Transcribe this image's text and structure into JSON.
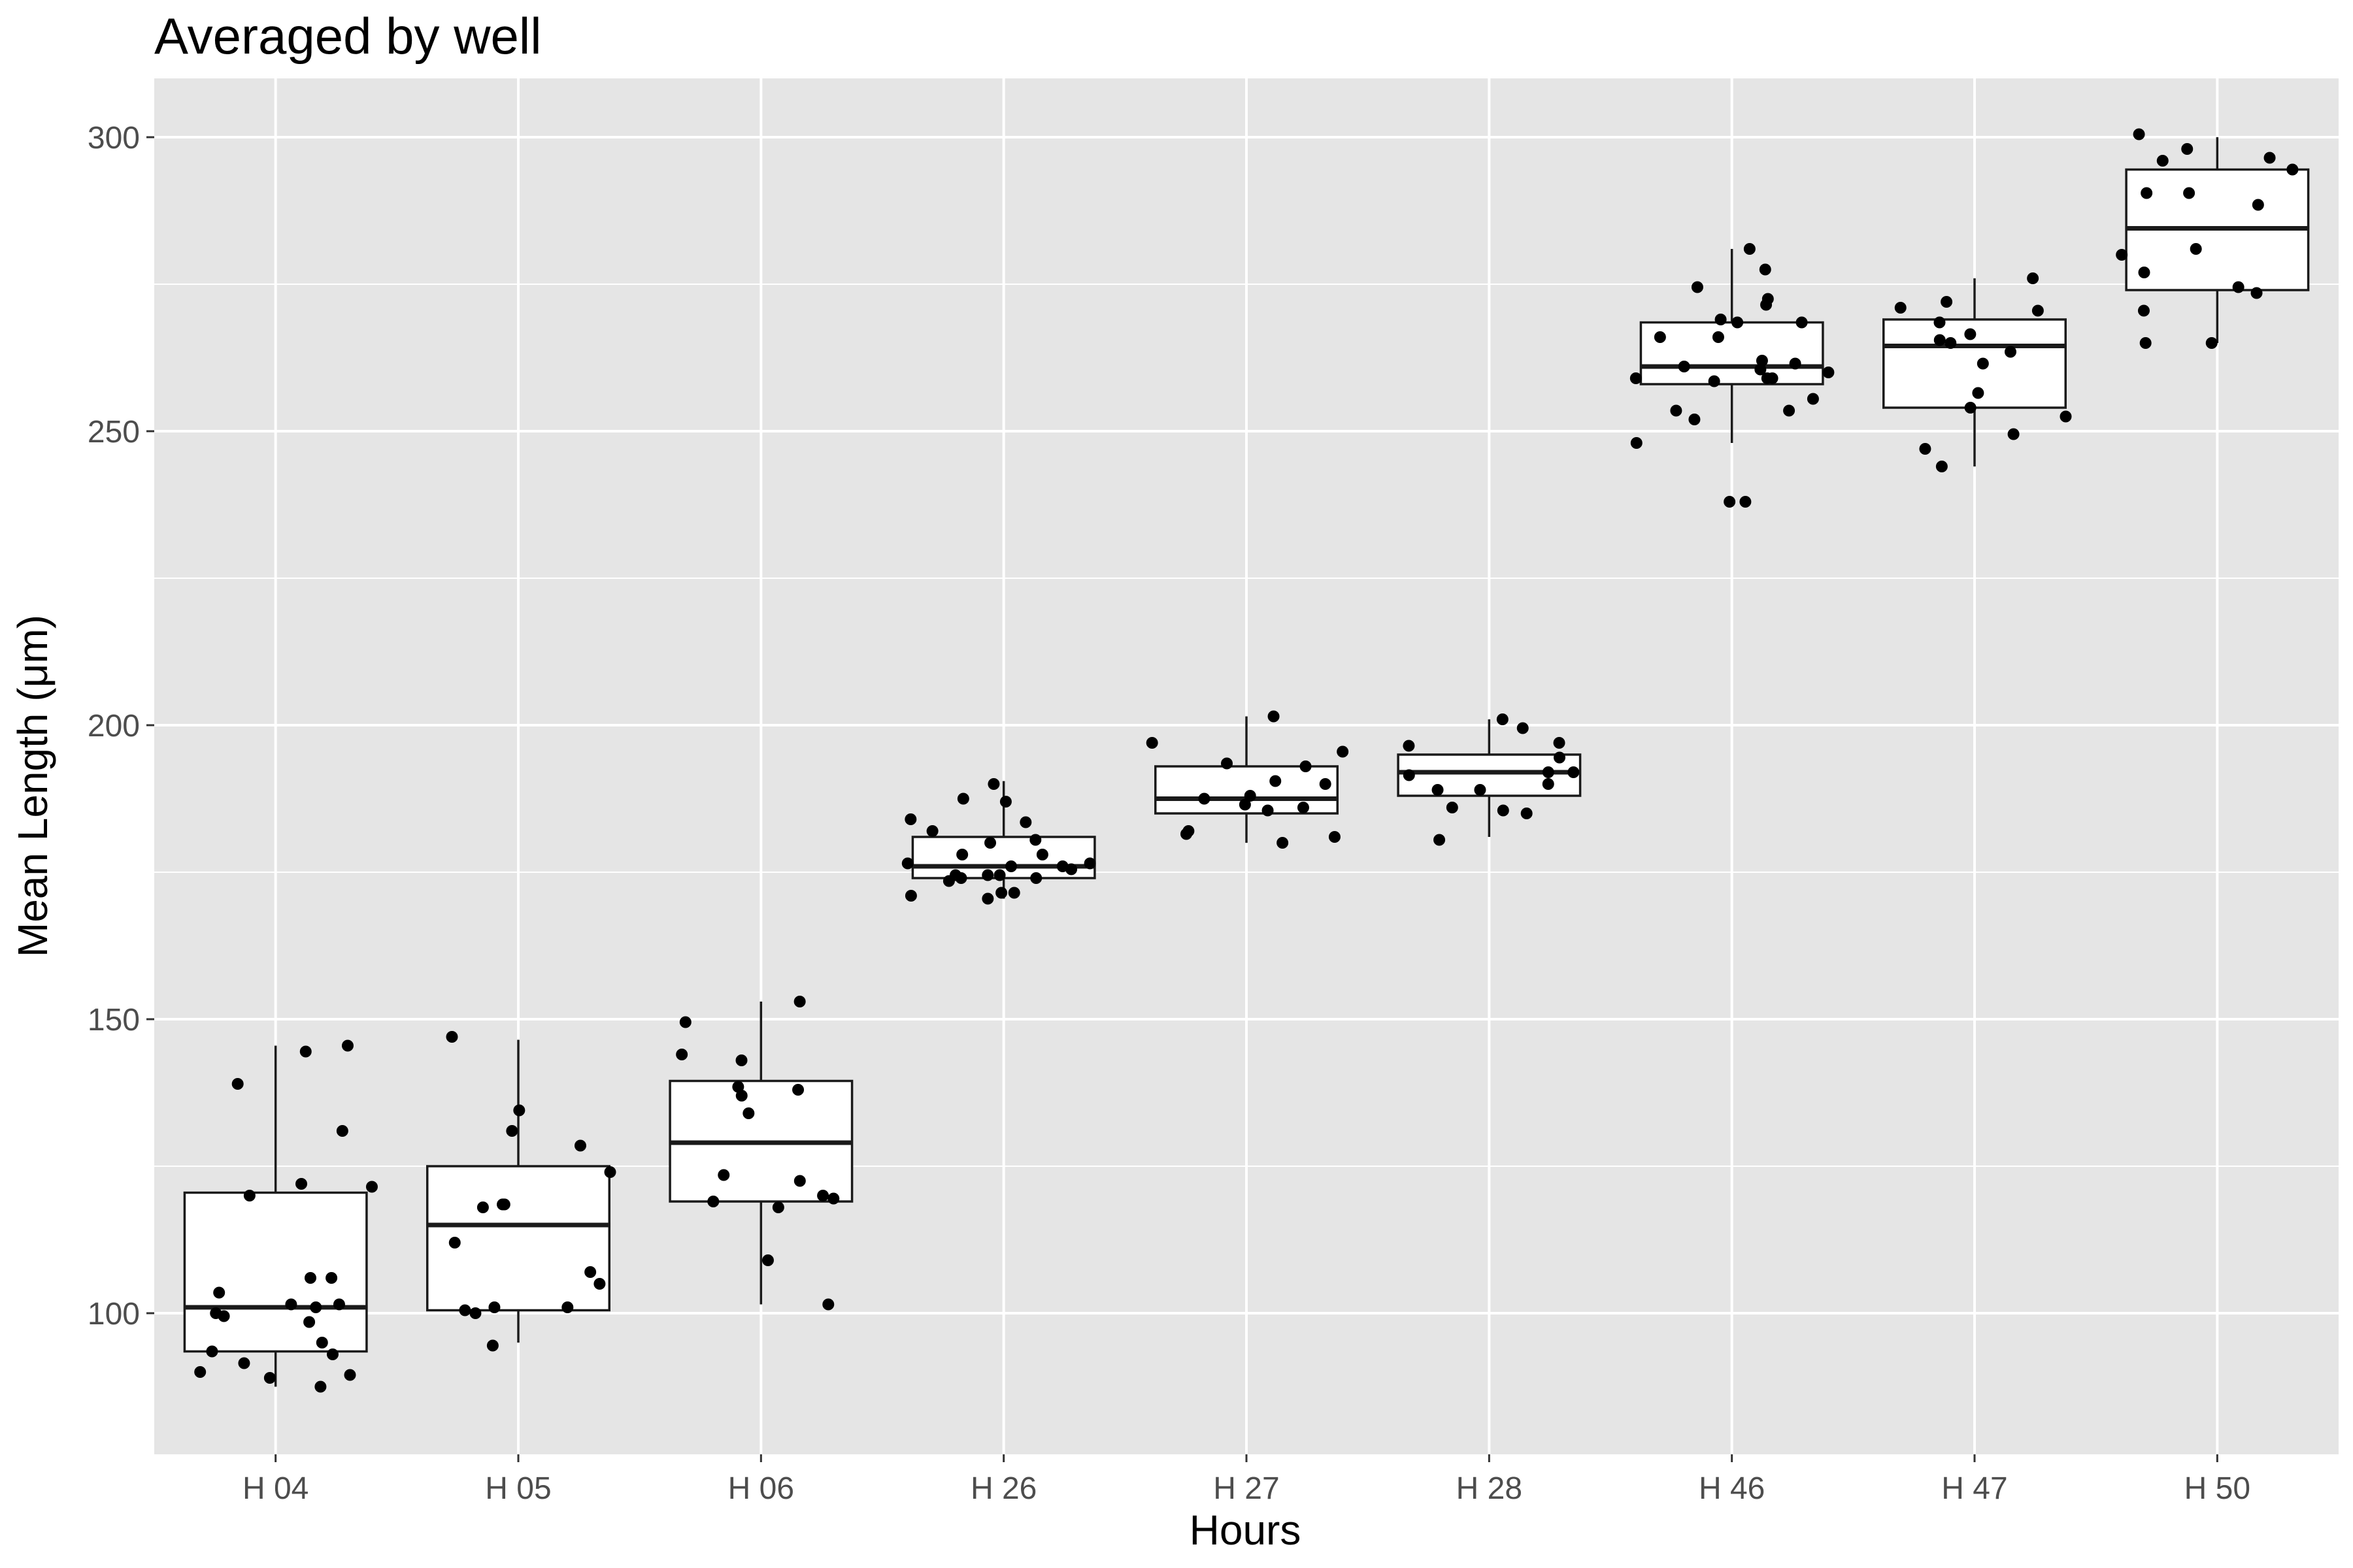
{
  "chart_data": {
    "type": "box",
    "title": "Averaged by well",
    "xlabel": "Hours",
    "ylabel": "Mean Length (μm)",
    "ylim": [
      76,
      310
    ],
    "yticks": [
      100,
      150,
      200,
      250,
      300
    ],
    "grid": true,
    "categories": [
      "H 04",
      "H 05",
      "H 06",
      "H 26",
      "H 27",
      "H 28",
      "H 46",
      "H 47",
      "H 50"
    ],
    "boxes": [
      {
        "category": "H 04",
        "whisker_low": 87.5,
        "q1": 93.5,
        "median": 101,
        "q3": 120.5,
        "whisker_high": 145.5
      },
      {
        "category": "H 05",
        "whisker_low": 95,
        "q1": 100.5,
        "median": 115,
        "q3": 125,
        "whisker_high": 146.5
      },
      {
        "category": "H 06",
        "whisker_low": 101.5,
        "q1": 119,
        "median": 129,
        "q3": 139.5,
        "whisker_high": 153
      },
      {
        "category": "H 26",
        "whisker_low": 170.5,
        "q1": 174,
        "median": 176,
        "q3": 181,
        "whisker_high": 190.5
      },
      {
        "category": "H 27",
        "whisker_low": 180,
        "q1": 185,
        "median": 187.5,
        "q3": 193,
        "whisker_high": 201.5
      },
      {
        "category": "H 28",
        "whisker_low": 181,
        "q1": 188,
        "median": 192,
        "q3": 195,
        "whisker_high": 201
      },
      {
        "category": "H 46",
        "whisker_low": 248,
        "q1": 258,
        "median": 261,
        "q3": 268.5,
        "whisker_high": 281
      },
      {
        "category": "H 47",
        "whisker_low": 244,
        "q1": 254,
        "median": 264.5,
        "q3": 269,
        "whisker_high": 276
      },
      {
        "category": "H 50",
        "whisker_low": 265,
        "q1": 274,
        "median": 284.5,
        "q3": 294.5,
        "whisker_high": 300
      }
    ],
    "points": [
      {
        "category": "H 04",
        "values": [
          144.5,
          139,
          122,
          121.5,
          106,
          98.5,
          93.5,
          89.5,
          101,
          101.5,
          95,
          91.5,
          93,
          100,
          101.5,
          99.5,
          103.5,
          106,
          145.5,
          131,
          90,
          89,
          87.5,
          120
        ]
      },
      {
        "category": "H 05",
        "values": [
          100,
          94.5,
          105,
          107,
          118.5,
          118.5,
          128.5,
          112,
          147,
          118,
          101,
          134.5,
          124,
          131,
          101,
          100.5
        ]
      },
      {
        "category": "H 06",
        "values": [
          134,
          119.5,
          120,
          123.5,
          109,
          101.5,
          122.5,
          149.5,
          118,
          144,
          138,
          143,
          153,
          119,
          138.5,
          137
        ]
      },
      {
        "category": "H 26",
        "values": [
          170.5,
          176.5,
          180,
          171,
          174.5,
          182,
          174,
          176.5,
          178,
          174,
          174.5,
          173.5,
          176,
          174.5,
          176,
          175.5,
          183.5,
          178,
          184,
          171.5,
          190,
          187,
          180.5,
          187.5,
          171.5
        ]
      },
      {
        "category": "H 27",
        "values": [
          181,
          182,
          188,
          190,
          185.5,
          197,
          201.5,
          190.5,
          193.5,
          193,
          180,
          187.5,
          186,
          195.5,
          186.5,
          181.5
        ]
      },
      {
        "category": "H 28",
        "values": [
          201,
          199.5,
          194.5,
          185.5,
          185,
          196.5,
          192,
          191.5,
          180.5,
          189,
          190,
          186,
          197,
          189,
          192
        ]
      },
      {
        "category": "H 46",
        "values": [
          258.5,
          266,
          248,
          274.5,
          259,
          261.5,
          253.5,
          260,
          281,
          268.5,
          252,
          259,
          261,
          268.5,
          260.5,
          272.5,
          277.5,
          238,
          262,
          255.5,
          259,
          266,
          238,
          253.5,
          271.5,
          269
        ]
      },
      {
        "category": "H 47",
        "values": [
          265.5,
          263.5,
          272,
          265,
          247,
          244,
          271,
          261.5,
          252.5,
          249.5,
          256.5,
          270.5,
          276,
          268.5,
          266.5,
          254
        ]
      },
      {
        "category": "H 50",
        "values": [
          290.5,
          294.5,
          298,
          280,
          274.5,
          281,
          300.5,
          265,
          270.5,
          277,
          296.5,
          288.5,
          273.5,
          290.5,
          296,
          265
        ]
      }
    ]
  }
}
